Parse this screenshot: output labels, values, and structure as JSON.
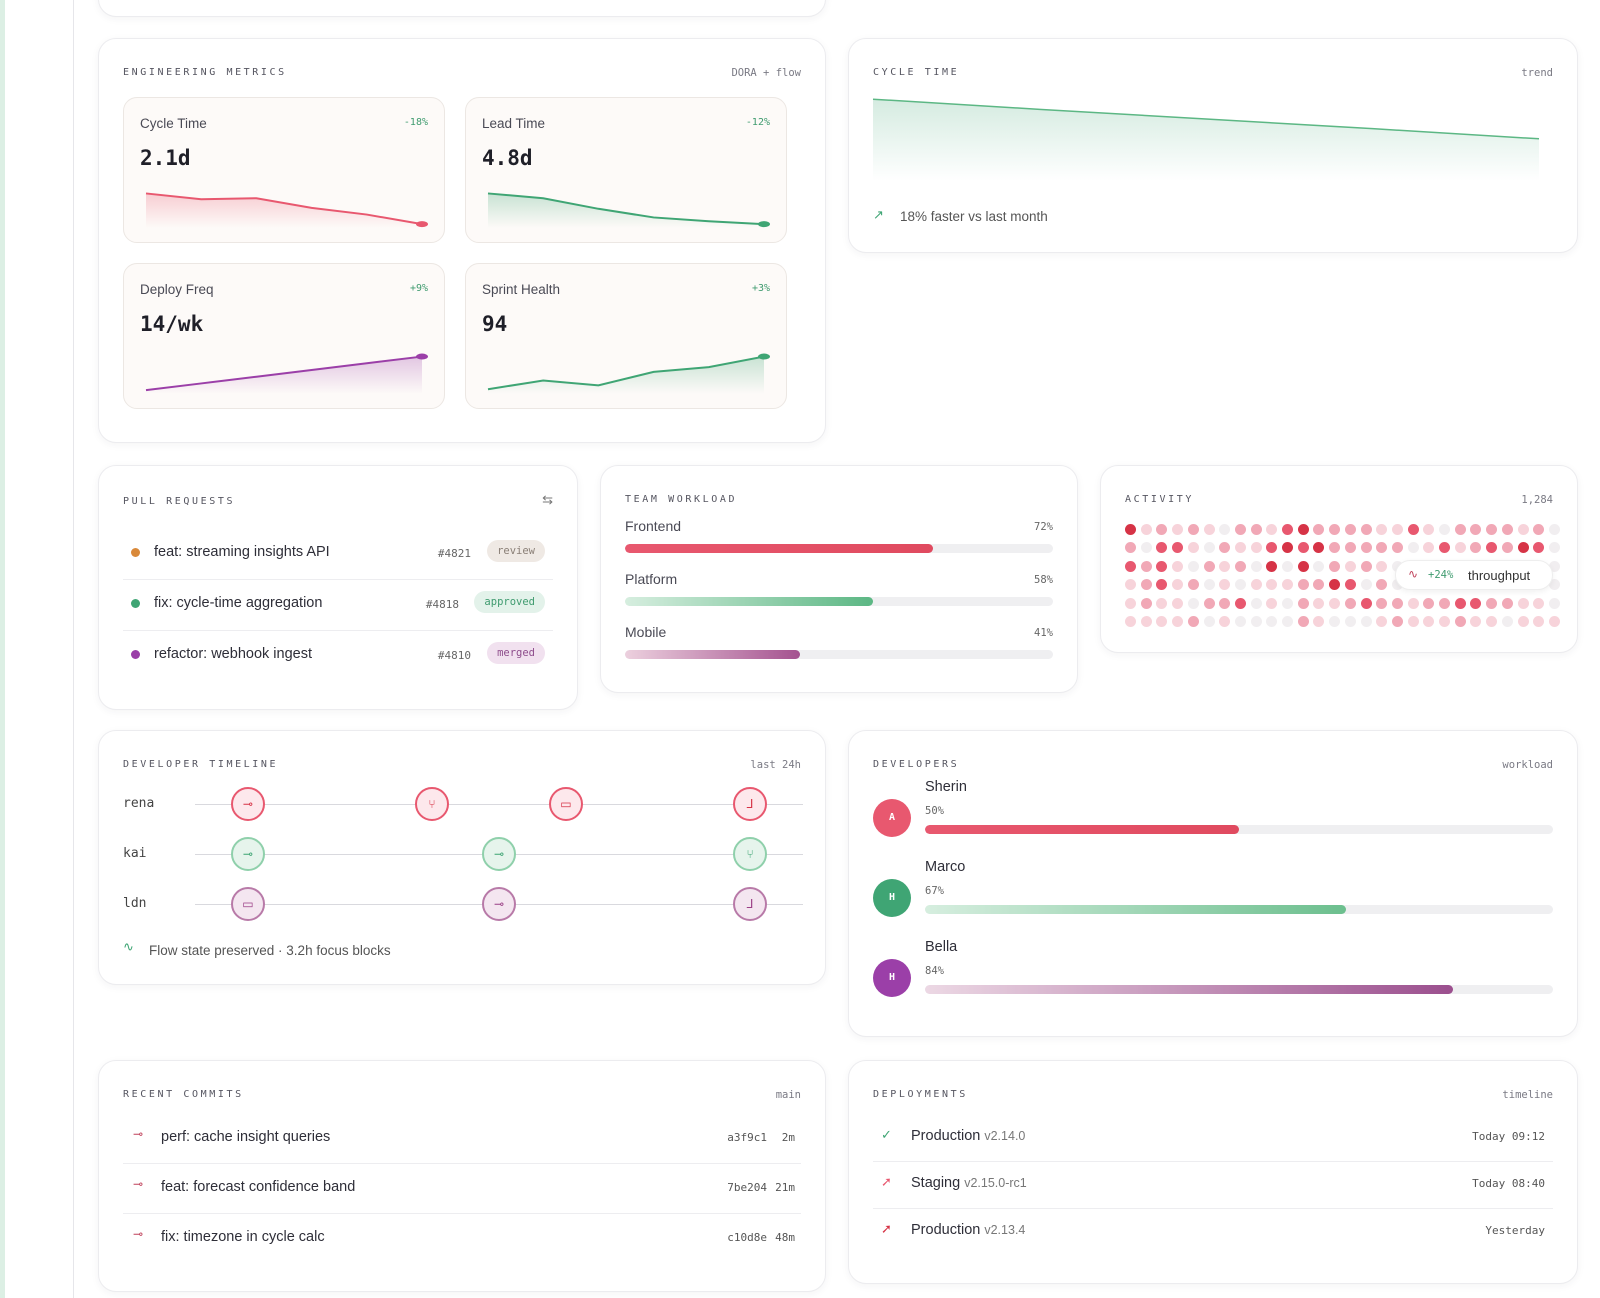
{
  "metrics_card": {
    "title": "ENGINEERING METRICS",
    "meta": "DORA + flow",
    "metrics": [
      {
        "label": "Cycle Time",
        "change": "-18%",
        "value": "2.1d",
        "color": "#e8586f",
        "trend": [
          0.72,
          0.6,
          0.62,
          0.42,
          0.28,
          0.08
        ]
      },
      {
        "label": "Lead Time",
        "change": "-12%",
        "value": "4.8d",
        "color": "#3fa574",
        "trend": [
          0.72,
          0.62,
          0.4,
          0.22,
          0.14,
          0.08
        ]
      },
      {
        "label": "Deploy Freq",
        "change": "+9%",
        "value": "14/wk",
        "color": "#9b3fa8",
        "trend": [
          0.08,
          0.22,
          0.36,
          0.5,
          0.64,
          0.78
        ]
      },
      {
        "label": "Sprint Health",
        "change": "+3%",
        "value": "94",
        "color": "#3fa574",
        "trend": [
          0.1,
          0.28,
          0.18,
          0.46,
          0.56,
          0.78
        ]
      }
    ]
  },
  "cycle_card": {
    "title": "CYCLE TIME",
    "meta": "trend",
    "footer": "18% faster vs last month",
    "trend": [
      0.95,
      0.72,
      0.5,
      0.28,
      0.05
    ]
  },
  "pull_requests": {
    "title": "PULL REQUESTS",
    "items": [
      {
        "title": "feat: streaming insights API",
        "number": "#4821",
        "status": "review",
        "dot": "#d9893a",
        "badge_bg": "#efe9e4",
        "badge_fg": "#8a7f76"
      },
      {
        "title": "fix: cycle-time aggregation",
        "number": "#4818",
        "status": "approved",
        "dot": "#3fa574",
        "badge_bg": "#e3f2ea",
        "badge_fg": "#3f9b6f"
      },
      {
        "title": "refactor: webhook ingest",
        "number": "#4810",
        "status": "merged",
        "dot": "#9b3fa8",
        "badge_bg": "#f1e1ef",
        "badge_fg": "#8e4d8c"
      }
    ]
  },
  "team_workload": {
    "title": "TEAM WORKLOAD",
    "teams": [
      {
        "name": "Frontend",
        "pct_label": "72%",
        "value": 0.72,
        "from": "#e8586f",
        "to": "#e04a5f"
      },
      {
        "name": "Platform",
        "pct_label": "58%",
        "value": 0.58,
        "from": "#d6eedf",
        "to": "#5cb784"
      },
      {
        "name": "Mobile",
        "pct_label": "41%",
        "value": 0.41,
        "from": "#ecd0de",
        "to": "#a4528f"
      }
    ]
  },
  "activity": {
    "title": "ACTIVITY",
    "count": "1,284",
    "tooltip_pct": "+24%",
    "tooltip_label": "throughput",
    "palette": [
      "#f1eef0",
      "#f7d3da",
      "#f1a8b6",
      "#e8586f",
      "#d63346"
    ],
    "grid": [
      "4121210221342222113102222120",
      "2033102113434222220131232430",
      "3231021204040212100000000000",
      "1231201011122430200000000000",
      "1211022301021123221223322110",
      "1111201000021000121112110111"
    ]
  },
  "timeline": {
    "title": "DEVELOPER TIMELINE",
    "meta": "last 24h",
    "footer": "Flow state preserved · 3.2h focus blocks",
    "rows": [
      {
        "name": "rena",
        "nodes": [
          {
            "pos": 0.05,
            "icon": "commit"
          },
          {
            "pos": 0.38,
            "icon": "branch"
          },
          {
            "pos": 0.62,
            "icon": "comment"
          },
          {
            "pos": 0.95,
            "icon": "merge"
          }
        ]
      },
      {
        "name": "kai",
        "nodes": [
          {
            "pos": 0.05,
            "icon": "commit"
          },
          {
            "pos": 0.5,
            "icon": "commit"
          },
          {
            "pos": 0.95,
            "icon": "branch"
          }
        ]
      },
      {
        "name": "ldn",
        "nodes": [
          {
            "pos": 0.05,
            "icon": "comment"
          },
          {
            "pos": 0.5,
            "icon": "commit"
          },
          {
            "pos": 0.95,
            "icon": "merge"
          }
        ]
      }
    ],
    "row_styles": [
      {
        "bg": "#fde8ec",
        "border": "#e8586f",
        "fg": "#d63346"
      },
      {
        "bg": "#e6f4ec",
        "border": "#8fd0ab",
        "fg": "#3fa574"
      },
      {
        "bg": "#f4e6f0",
        "border": "#b87aa8",
        "fg": "#9b3f86"
      }
    ]
  },
  "developers": {
    "title": "DEVELOPERS",
    "meta": "workload",
    "people": [
      {
        "initial": "A",
        "name": "Sherin",
        "pct_label": "50%",
        "value": 0.5,
        "avatar": "#e8586f",
        "from": "#e8586f",
        "to": "#e04a5f"
      },
      {
        "initial": "H",
        "name": "Marco",
        "pct_label": "67%",
        "value": 0.67,
        "avatar": "#3fa574",
        "from": "#d6eedf",
        "to": "#6cbf8e"
      },
      {
        "initial": "H",
        "name": "Bella",
        "pct_label": "84%",
        "value": 0.84,
        "avatar": "#9b3fa8",
        "from": "#ecd8e4",
        "to": "#9b4f8e"
      }
    ]
  },
  "commits": {
    "title": "RECENT COMMITS",
    "meta": "main",
    "items": [
      {
        "message": "perf: cache insight queries",
        "hash": "a3f9c1",
        "ago": "2m"
      },
      {
        "message": "feat: forecast confidence band",
        "hash": "7be204",
        "ago": "21m"
      },
      {
        "message": "fix: timezone in cycle calc",
        "hash": "c10d8e",
        "ago": "48m"
      }
    ]
  },
  "deployments": {
    "title": "DEPLOYMENTS",
    "meta": "timeline",
    "items": [
      {
        "env": "Production",
        "version": "v2.14.0",
        "when": "Today 09:12",
        "icon": "check",
        "color": "#3fa574"
      },
      {
        "env": "Staging",
        "version": "v2.15.0-rc1",
        "when": "Today 08:40",
        "icon": "rocket",
        "color": "#e8586f"
      },
      {
        "env": "Production",
        "version": "v2.13.4",
        "when": "Yesterday",
        "icon": "rocket",
        "color": "#d63346"
      }
    ]
  }
}
